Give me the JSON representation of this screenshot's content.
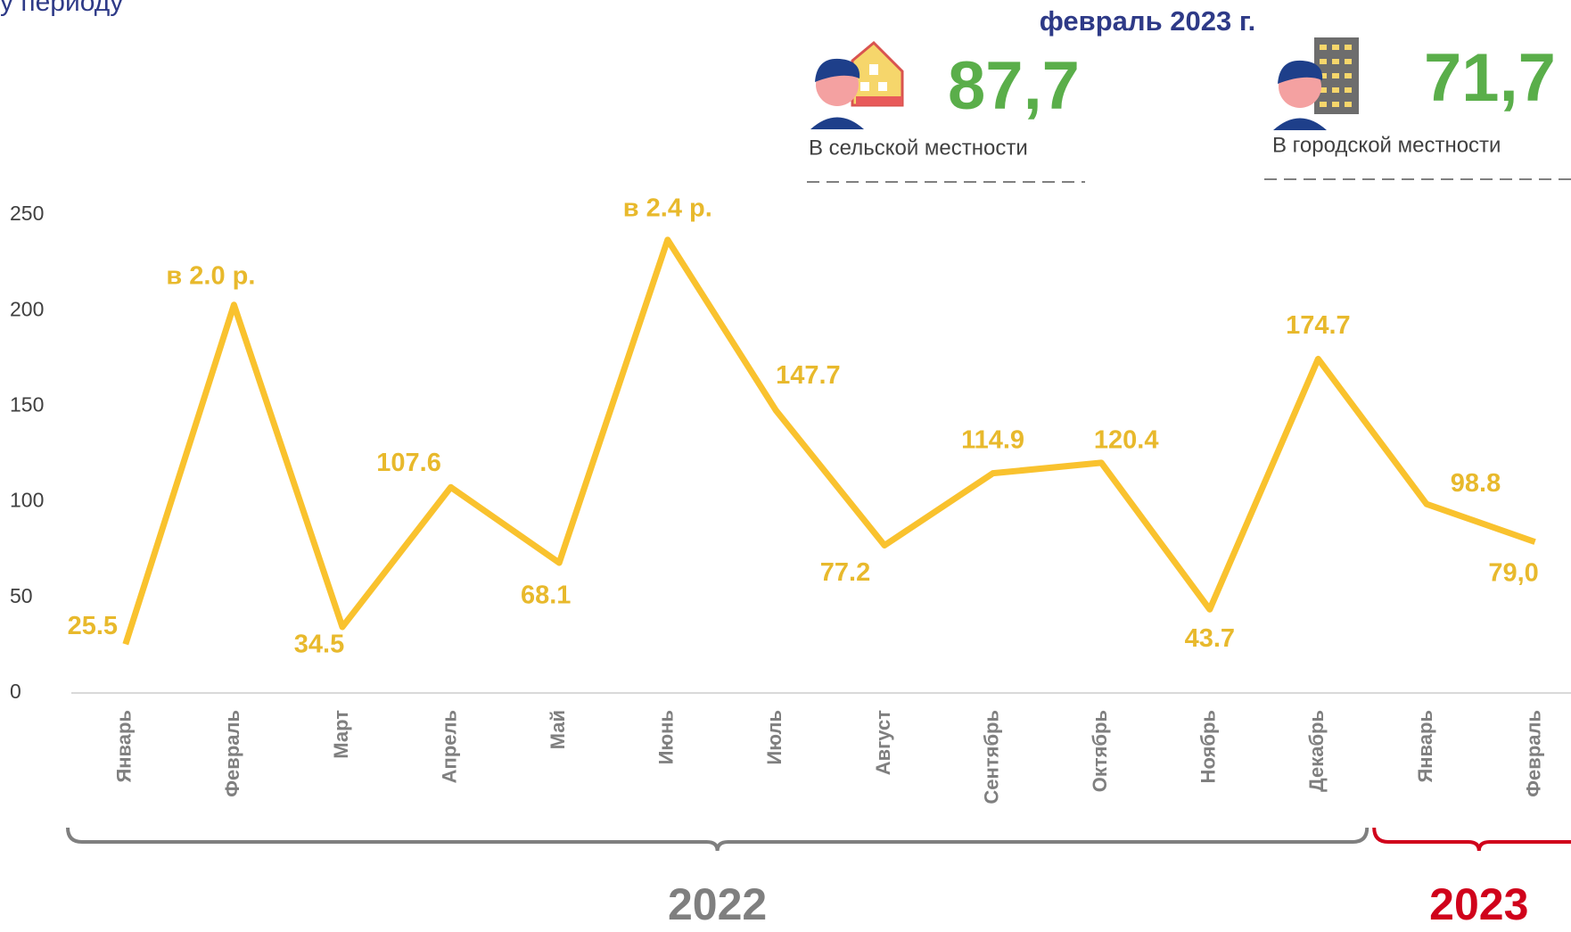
{
  "header": {
    "title_fragment": "у периоду",
    "period": "февраль 2023 г.",
    "kpis": [
      {
        "value": "87,7",
        "label": "В сельской местности"
      },
      {
        "value": "71,7",
        "label": "В городской местности"
      }
    ]
  },
  "chart_data": {
    "type": "line",
    "categories": [
      "Январь",
      "Февраль",
      "Март",
      "Апрель",
      "Май",
      "Июнь",
      "Июль",
      "Август",
      "Сентябрь",
      "Октябрь",
      "Ноябрь",
      "Декабрь",
      "Январь",
      "Февраль"
    ],
    "series": [
      {
        "color": "#f9c22e",
        "values": [
          25.5,
          203,
          34.5,
          107.6,
          68.1,
          237,
          147.7,
          77.2,
          114.9,
          120.4,
          43.7,
          174.7,
          98.8,
          79.0
        ]
      }
    ],
    "value_labels": [
      "25.5",
      null,
      "34.5",
      "107.6",
      "68.1",
      null,
      "147.7",
      "77.2",
      "114.9",
      "120.4",
      "43.7",
      "174.7",
      "98.8",
      "79,0"
    ],
    "annotations": [
      null,
      "в 2.0 р.",
      null,
      null,
      null,
      "в 2.4 р.",
      null,
      null,
      null,
      null,
      null,
      null,
      null,
      null
    ],
    "groups": [
      {
        "label": "2022",
        "size": 12,
        "color": "#7f7f7f"
      },
      {
        "label": "2023",
        "size": 2,
        "color": "#d0021b"
      }
    ],
    "ylim": [
      0,
      250
    ],
    "yticks": [
      0,
      50,
      100,
      150,
      200,
      250
    ],
    "grid": false
  }
}
